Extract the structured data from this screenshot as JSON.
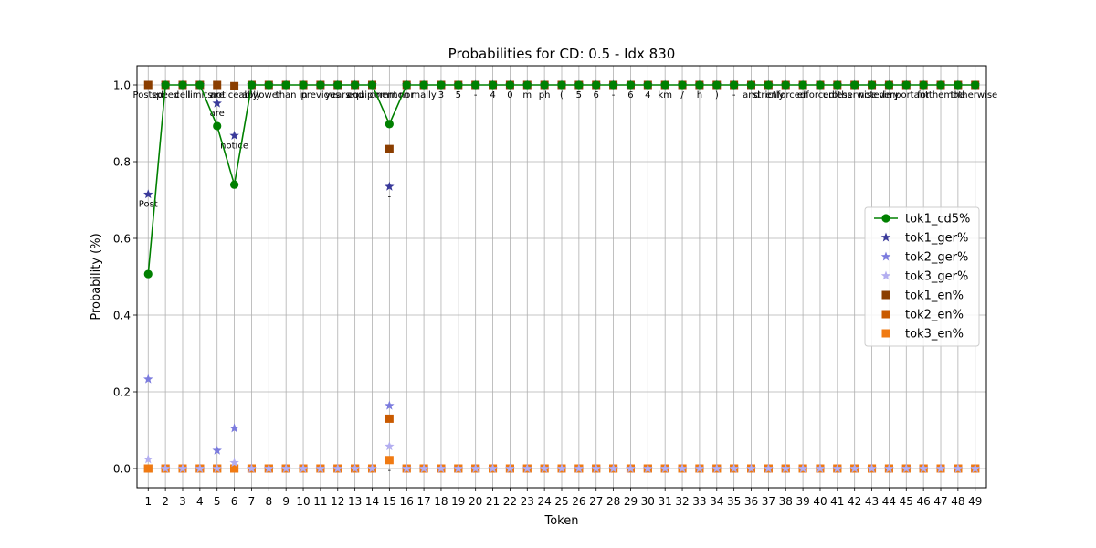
{
  "chart_data": {
    "type": "line",
    "title": "Probabilities for CD: 0.5 - Idx 830",
    "xlabel": "Token",
    "ylabel": "Probability (%)",
    "x": [
      1,
      2,
      3,
      4,
      5,
      6,
      7,
      8,
      9,
      10,
      11,
      12,
      13,
      14,
      15,
      16,
      17,
      18,
      19,
      20,
      21,
      22,
      23,
      24,
      25,
      26,
      27,
      28,
      29,
      30,
      31,
      32,
      33,
      34,
      35,
      36,
      37,
      38,
      39,
      40,
      41,
      42,
      43,
      44,
      45,
      46,
      47,
      48,
      49
    ],
    "xlim": [
      0.35,
      49.65
    ],
    "ylim": [
      -0.05,
      1.05
    ],
    "yticks": [
      0.0,
      0.2,
      0.4,
      0.6,
      0.8,
      1.0
    ],
    "ytick_labels": [
      "0.0",
      "0.2",
      "0.4",
      "0.6",
      "0.8",
      "1.0"
    ],
    "grid": true,
    "legend_position": "center-right",
    "series": [
      {
        "name": "tok1_cd5%",
        "marker": "circle-line",
        "color": "#008000",
        "values": [
          0.507,
          1,
          1,
          1,
          0.893,
          0.74,
          1,
          1,
          1,
          1,
          1,
          1,
          1,
          1,
          0.898,
          1,
          1,
          1,
          1,
          1,
          1,
          1,
          1,
          1,
          1,
          1,
          1,
          1,
          1,
          1,
          1,
          1,
          1,
          1,
          1,
          1,
          1,
          1,
          1,
          1,
          1,
          1,
          1,
          1,
          1,
          1,
          1,
          1,
          1
        ]
      },
      {
        "name": "tok1_ger%",
        "marker": "star",
        "color": "#3a3a9a",
        "values": [
          0.715,
          1,
          1,
          1,
          0.952,
          0.868,
          1,
          1,
          1,
          1,
          1,
          1,
          1,
          1,
          0.735,
          1,
          1,
          1,
          1,
          1,
          1,
          1,
          1,
          1,
          1,
          1,
          1,
          1,
          1,
          1,
          1,
          1,
          1,
          1,
          1,
          1,
          1,
          1,
          1,
          1,
          1,
          1,
          1,
          1,
          1,
          1,
          1,
          1,
          1
        ]
      },
      {
        "name": "tok2_ger%",
        "marker": "star",
        "color": "#7b7bde",
        "values": [
          0.233,
          0,
          0,
          0,
          0.047,
          0.105,
          0,
          0,
          0,
          0,
          0,
          0,
          0,
          0,
          0.164,
          0,
          0,
          0,
          0,
          0,
          0,
          0,
          0,
          0,
          0,
          0,
          0,
          0,
          0,
          0,
          0,
          0,
          0,
          0,
          0,
          0,
          0,
          0,
          0,
          0,
          0,
          0,
          0,
          0,
          0,
          0,
          0,
          0,
          0
        ]
      },
      {
        "name": "tok3_ger%",
        "marker": "star",
        "color": "#b3aef0",
        "values": [
          0.024,
          0,
          0,
          0,
          0,
          0.015,
          0,
          0,
          0,
          0,
          0,
          0,
          0,
          0,
          0.058,
          0,
          0,
          0,
          0,
          0,
          0,
          0,
          0,
          0,
          0,
          0,
          0,
          0,
          0,
          0,
          0,
          0,
          0,
          0,
          0,
          0,
          0,
          0,
          0,
          0,
          0,
          0,
          0,
          0,
          0,
          0,
          0,
          0,
          0
        ]
      },
      {
        "name": "tok1_en%",
        "marker": "square",
        "color": "#8b3e00",
        "values": [
          1,
          1,
          1,
          1,
          1,
          0.997,
          1,
          1,
          1,
          1,
          1,
          1,
          1,
          1,
          0.833,
          1,
          1,
          1,
          1,
          1,
          1,
          1,
          1,
          1,
          1,
          1,
          1,
          1,
          1,
          1,
          1,
          1,
          1,
          1,
          1,
          1,
          1,
          1,
          1,
          1,
          1,
          1,
          1,
          1,
          1,
          1,
          1,
          1,
          1
        ]
      },
      {
        "name": "tok2_en%",
        "marker": "square",
        "color": "#c95a00",
        "values": [
          0,
          0,
          0,
          0,
          0,
          0,
          0,
          0,
          0,
          0,
          0,
          0,
          0,
          0,
          0.13,
          0,
          0,
          0,
          0,
          0,
          0,
          0,
          0,
          0,
          0,
          0,
          0,
          0,
          0,
          0,
          0,
          0,
          0,
          0,
          0,
          0,
          0,
          0,
          0,
          0,
          0,
          0,
          0,
          0,
          0,
          0,
          0,
          0,
          0
        ]
      },
      {
        "name": "tok3_en%",
        "marker": "square",
        "color": "#f07a12",
        "values": [
          0,
          0,
          0,
          0,
          0,
          0,
          0,
          0,
          0,
          0,
          0,
          0,
          0,
          0,
          0.022,
          0,
          0,
          0,
          0,
          0,
          0,
          0,
          0,
          0,
          0,
          0,
          0,
          0,
          0,
          0,
          0,
          0,
          0,
          0,
          0,
          0,
          0,
          0,
          0,
          0,
          0,
          0,
          0,
          0,
          0,
          0,
          0,
          0,
          0
        ]
      }
    ],
    "annotations": [
      {
        "x": 1,
        "y": 1.0,
        "text": "Posted"
      },
      {
        "x": 2,
        "y": 1.0,
        "text": "speed"
      },
      {
        "x": 3,
        "y": 1.0,
        "text": "cell"
      },
      {
        "x": 4,
        "y": 1.0,
        "text": "limits"
      },
      {
        "x": 5,
        "y": 1.0,
        "text": "are"
      },
      {
        "x": 6,
        "y": 1.0,
        "text": "noticeably"
      },
      {
        "x": 7,
        "y": 1.0,
        "text": "ably"
      },
      {
        "x": 8,
        "y": 1.0,
        "text": "lower"
      },
      {
        "x": 9,
        "y": 1.0,
        "text": "than"
      },
      {
        "x": 10,
        "y": 1.0,
        "text": "in"
      },
      {
        "x": 11,
        "y": 1.0,
        "text": "previous"
      },
      {
        "x": 12,
        "y": 1.0,
        "text": "years"
      },
      {
        "x": 13,
        "y": 1.0,
        "text": "and"
      },
      {
        "x": 14,
        "y": 1.0,
        "text": "equipment"
      },
      {
        "x": 15,
        "y": 1.0,
        "text": "common"
      },
      {
        "x": 16,
        "y": 1.0,
        "text": "nor"
      },
      {
        "x": 17,
        "y": 1.0,
        "text": "mally"
      },
      {
        "x": 18,
        "y": 1.0,
        "text": "3"
      },
      {
        "x": 19,
        "y": 1.0,
        "text": "5"
      },
      {
        "x": 20,
        "y": 1.0,
        "text": "-"
      },
      {
        "x": 21,
        "y": 1.0,
        "text": "4"
      },
      {
        "x": 22,
        "y": 1.0,
        "text": "0"
      },
      {
        "x": 23,
        "y": 1.0,
        "text": "m"
      },
      {
        "x": 24,
        "y": 1.0,
        "text": "ph"
      },
      {
        "x": 25,
        "y": 1.0,
        "text": "("
      },
      {
        "x": 26,
        "y": 1.0,
        "text": "5"
      },
      {
        "x": 27,
        "y": 1.0,
        "text": "6"
      },
      {
        "x": 28,
        "y": 1.0,
        "text": "-"
      },
      {
        "x": 29,
        "y": 1.0,
        "text": "6"
      },
      {
        "x": 30,
        "y": 1.0,
        "text": "4"
      },
      {
        "x": 31,
        "y": 1.0,
        "text": "km"
      },
      {
        "x": 32,
        "y": 1.0,
        "text": "/"
      },
      {
        "x": 33,
        "y": 1.0,
        "text": "h"
      },
      {
        "x": 34,
        "y": 1.0,
        "text": ")"
      },
      {
        "x": 35,
        "y": 1.0,
        "text": "-"
      },
      {
        "x": 36,
        "y": 1.0,
        "text": "and"
      },
      {
        "x": 37,
        "y": 1.0,
        "text": "strictly"
      },
      {
        "x": 38,
        "y": 1.0,
        "text": "enforced"
      },
      {
        "x": 39,
        "y": 1.0,
        "text": "en"
      },
      {
        "x": 40,
        "y": 1.0,
        "text": "forced"
      },
      {
        "x": 41,
        "y": 1.0,
        "text": "unless"
      },
      {
        "x": 42,
        "y": 1.0,
        "text": "otherwise"
      },
      {
        "x": 43,
        "y": 1.0,
        "text": "noted"
      },
      {
        "x": 44,
        "y": 1.0,
        "text": "very"
      },
      {
        "x": 45,
        "y": 1.0,
        "text": "important"
      },
      {
        "x": 46,
        "y": 1.0,
        "text": "for"
      },
      {
        "x": 47,
        "y": 1.0,
        "text": "them"
      },
      {
        "x": 48,
        "y": 1.0,
        "text": "the"
      },
      {
        "x": 49,
        "y": 1.0,
        "text": "otherwise"
      },
      {
        "x": 1,
        "y": 0.715,
        "text": "Post"
      },
      {
        "x": 5,
        "y": 0.952,
        "text": "are"
      },
      {
        "x": 6,
        "y": 0.868,
        "text": "notice"
      },
      {
        "x": 15,
        "y": 0.735,
        "text": "-"
      },
      {
        "x": 15,
        "y": 0.022,
        "text": "-"
      }
    ]
  }
}
